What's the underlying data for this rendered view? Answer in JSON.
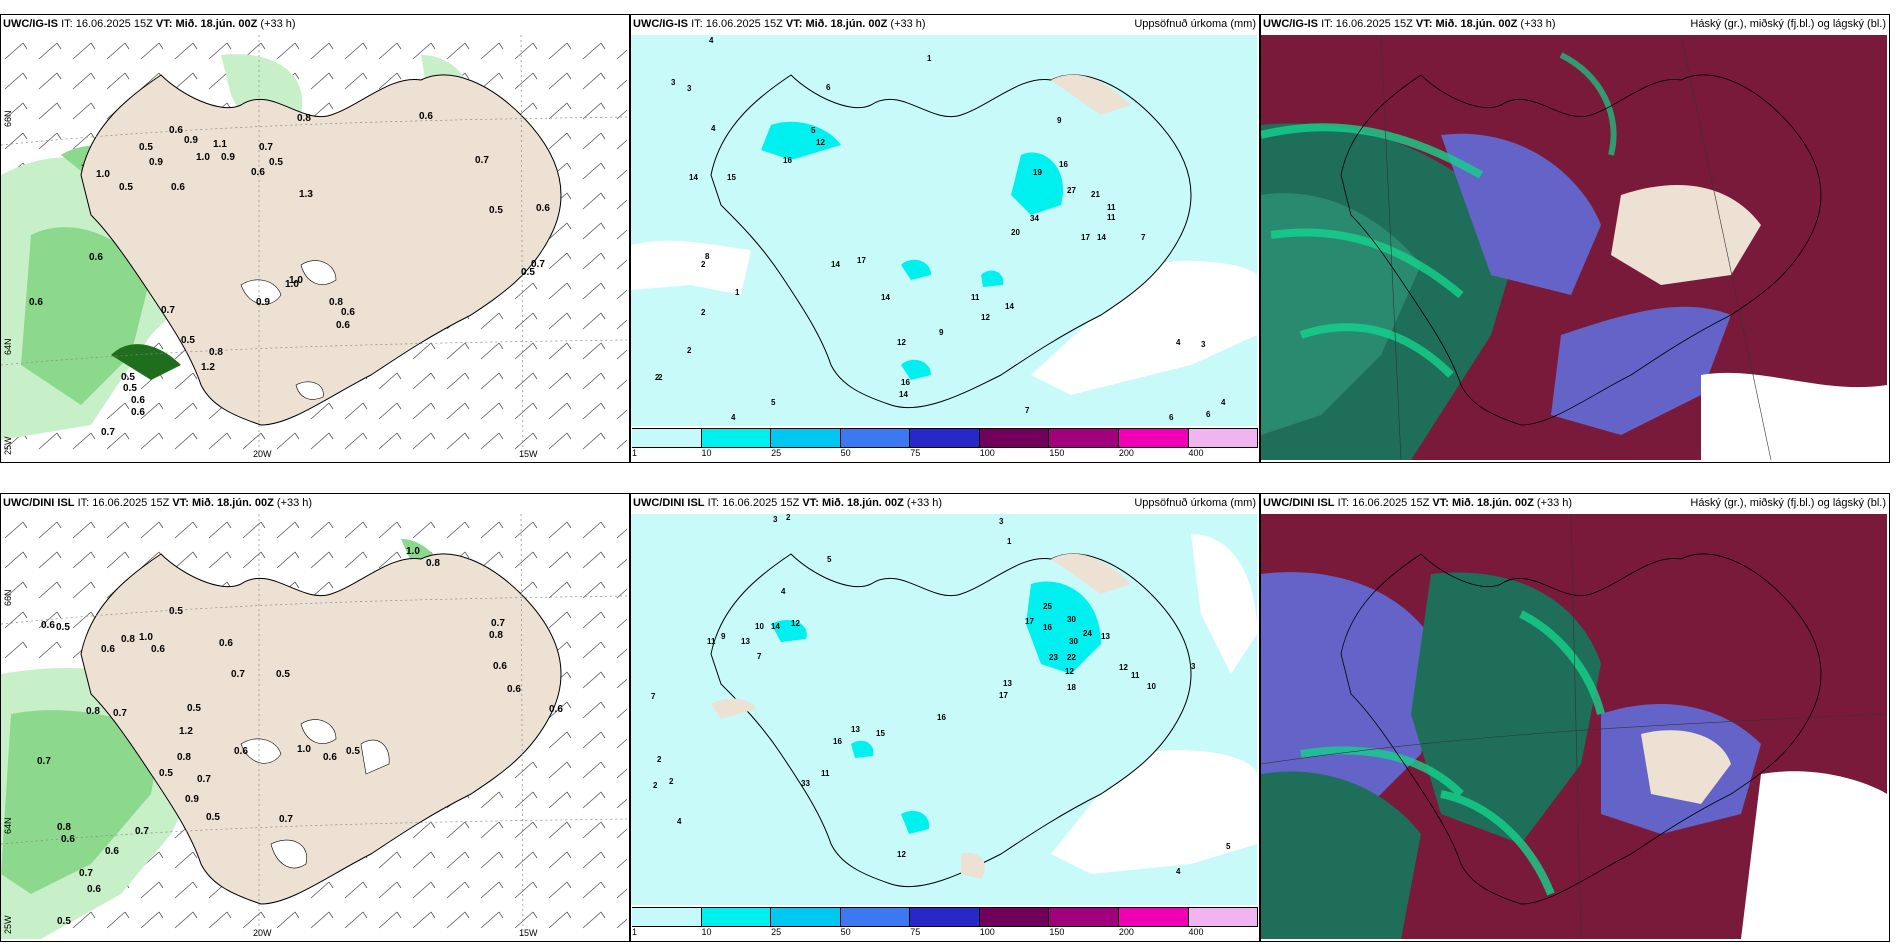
{
  "panels": {
    "p1": {
      "model": "UWC/IG-IS",
      "it_label": "IT:",
      "it": "16.06.2025 15Z",
      "vt_label": "VT:",
      "vt": "Mið. 18.jún. 00Z",
      "lead": "(+33 h)",
      "right_title": ""
    },
    "p2": {
      "model": "UWC/IG-IS",
      "it_label": "IT:",
      "it": "16.06.2025 15Z",
      "vt_label": "VT:",
      "vt": "Mið. 18.jún. 00Z",
      "lead": "(+33 h)",
      "right_title": "Uppsöfnuð úrkoma (mm)"
    },
    "p3": {
      "model": "UWC/IG-IS",
      "it_label": "IT:",
      "it": "16.06.2025 15Z",
      "vt_label": "VT:",
      "vt": "Mið. 18.jún. 00Z",
      "lead": "(+33 h)",
      "right_title": "Háský (gr.), miðský (fj.bl.) og lágský (bl.)"
    },
    "p4": {
      "model": "UWC/DINI ISL",
      "it_label": "IT:",
      "it": "16.06.2025 15Z",
      "vt_label": "VT:",
      "vt": "Mið. 18.jún. 00Z",
      "lead": "(+33 h)",
      "right_title": ""
    },
    "p5": {
      "model": "UWC/DINI ISL",
      "it_label": "IT:",
      "it": "16.06.2025 15Z",
      "vt_label": "VT:",
      "vt": "Mið. 18.jún. 00Z",
      "lead": "(+33 h)",
      "right_title": "Uppsöfnuð úrkoma (mm)"
    },
    "p6": {
      "model": "UWC/DINI ISL",
      "it_label": "IT:",
      "it": "16.06.2025 15Z",
      "vt_label": "VT:",
      "vt": "Mið. 18.jún. 00Z",
      "lead": "(+33 h)",
      "right_title": "Háský (gr.), miðský (fj.bl.) og lágský (bl.)"
    }
  },
  "grid_labels": {
    "lat_n": "66N",
    "lat_s": "64N",
    "lon_w1": "20W",
    "lon_w2": "15W",
    "lon_w0": "25W"
  },
  "legend": {
    "ticks": [
      "1",
      "10",
      "25",
      "50",
      "75",
      "100",
      "150",
      "200",
      "400"
    ],
    "colors": [
      "#c6f9f9",
      "#00f0f0",
      "#00c8f0",
      "#3c78f0",
      "#2828c8",
      "#70005a",
      "#a0007c",
      "#f000b4",
      "#f0b4f0"
    ]
  },
  "colors": {
    "land": "#ede1d3",
    "ocean_precip": "#c8fafa",
    "green1": "#c8f0c8",
    "green2": "#8cd88c",
    "green3": "#1e6e1e",
    "cloud_red": "#7a1a3a",
    "cloud_teal": "#1e6e5a",
    "cloud_blue": "#6464c8",
    "cloud_green": "#14d28c"
  },
  "map_values": {
    "p1": [
      "0.6",
      "0.9",
      "1.1",
      "0.7",
      "0.8",
      "0.5",
      "0.9",
      "1.0",
      "1.0",
      "0.6",
      "0.9",
      "0.5",
      "0.6",
      "1.3",
      "0.6",
      "0.5",
      "0.7",
      "0.5",
      "0.6",
      "0.5",
      "0.7",
      "0.6",
      "0.6",
      "0.7",
      "1.0",
      "0.5",
      "0.8",
      "1.2",
      "0.5",
      "0.5",
      "0.6",
      "0.6",
      "0.7",
      "1.0",
      "0.9",
      "0.8",
      "0.6",
      "0.6"
    ],
    "p2": [
      "4",
      "3",
      "3",
      "1",
      "6",
      "4",
      "5",
      "12",
      "16",
      "15",
      "14",
      "19",
      "16",
      "27",
      "21",
      "11",
      "11",
      "9",
      "34",
      "20",
      "17",
      "14",
      "7",
      "4",
      "3",
      "8",
      "2",
      "1",
      "2",
      "2",
      "2",
      "14",
      "17",
      "14",
      "11",
      "12",
      "14",
      "9",
      "12",
      "16",
      "14",
      "7",
      "6",
      "5",
      "4",
      "4",
      "6",
      "2"
    ],
    "p4": [
      "0.6",
      "0.5",
      "1.0",
      "0.8",
      "0.6",
      "0.5",
      "0.6",
      "0.6",
      "0.7",
      "0.5",
      "0.7",
      "0.8",
      "1.0",
      "0.8",
      "0.6",
      "0.8",
      "0.7",
      "0.5",
      "0.6",
      "1.2",
      "0.6",
      "0.7",
      "0.8",
      "0.9",
      "0.7",
      "0.5",
      "0.6",
      "0.5",
      "0.7",
      "0.8",
      "0.6",
      "0.7",
      "0.6",
      "0.5",
      "1.0",
      "0.6",
      "0.5",
      "0.7",
      "0.6"
    ],
    "p5": [
      "3",
      "2",
      "5",
      "4",
      "7",
      "10",
      "14",
      "12",
      "11",
      "13",
      "9",
      "7",
      "25",
      "17",
      "30",
      "16",
      "24",
      "13",
      "30",
      "22",
      "23",
      "12",
      "18",
      "12",
      "11",
      "10",
      "13",
      "17",
      "2",
      "2",
      "2",
      "4",
      "13",
      "16",
      "33",
      "11",
      "12",
      "15",
      "16",
      "1",
      "3",
      "3",
      "4",
      "5"
    ]
  }
}
